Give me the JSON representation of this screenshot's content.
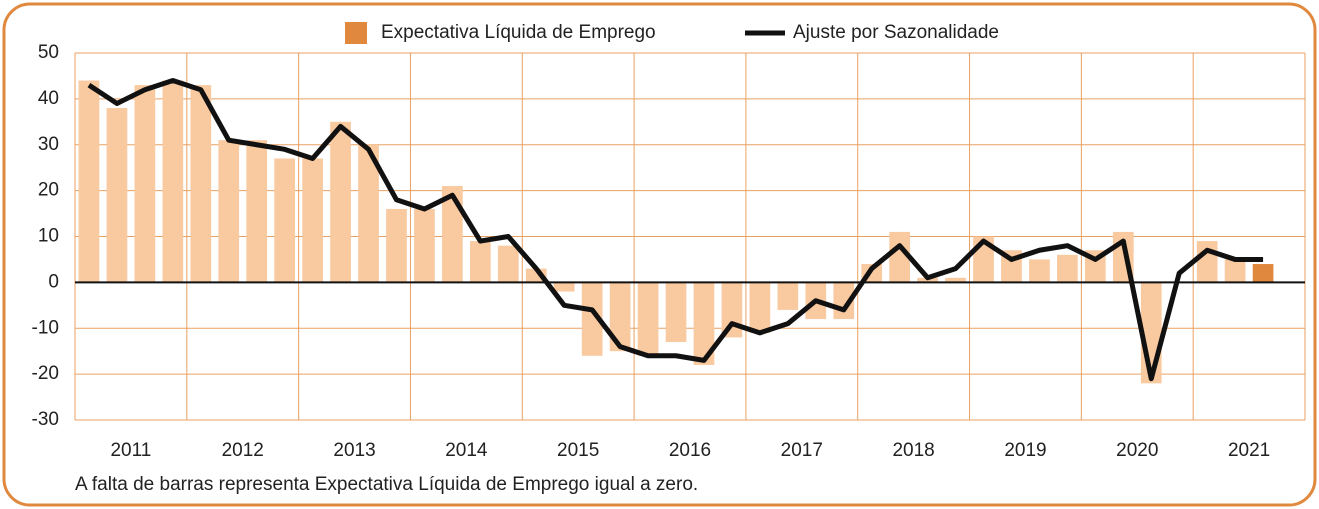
{
  "chart_data": {
    "type": "bar+line",
    "footnote": "A falta de barras representa Expectativa Líquida de Emprego igual a zero.",
    "year_labels": [
      "2011",
      "2012",
      "2013",
      "2014",
      "2015",
      "2016",
      "2017",
      "2018",
      "2019",
      "2020",
      "2021"
    ],
    "categories": [
      null,
      null,
      null,
      null,
      null,
      null,
      null,
      null,
      null,
      null,
      null,
      null,
      null,
      null,
      null,
      null,
      null,
      null,
      null,
      null,
      null,
      null,
      null,
      null,
      null,
      null,
      null,
      null,
      null,
      null,
      null,
      null,
      null,
      null,
      null,
      null,
      null,
      null,
      null,
      null,
      null,
      null,
      null,
      null
    ],
    "series": [
      {
        "name": "Expectativa Líquida de Emprego",
        "type": "bar",
        "color": "#e0893e",
        "colors": [
          "#f9c9a0",
          "#f9c9a0",
          "#f9c9a0",
          "#f9c9a0",
          "#f9c9a0",
          "#f9c9a0",
          "#f9c9a0",
          "#f9c9a0",
          "#f9c9a0",
          "#f9c9a0",
          "#f9c9a0",
          "#f9c9a0",
          "#f9c9a0",
          "#f9c9a0",
          "#f9c9a0",
          "#f9c9a0",
          "#f9c9a0",
          "#f9c9a0",
          "#f9c9a0",
          "#f9c9a0",
          "#f9c9a0",
          "#f9c9a0",
          "#f9c9a0",
          "#f9c9a0",
          "#f9c9a0",
          "#f9c9a0",
          "#f9c9a0",
          "#f9c9a0",
          "#f9c9a0",
          "#f9c9a0",
          "#f9c9a0",
          "#f9c9a0",
          "#f9c9a0",
          "#f9c9a0",
          "#f9c9a0",
          "#f9c9a0",
          "#f9c9a0",
          "#f9c9a0",
          "#f9c9a0",
          "#f9c9a0",
          "#f9c9a0",
          "#f9c9a0",
          "#e0893e",
          null
        ],
        "values": [
          44,
          38,
          43,
          44,
          43,
          31,
          31,
          27,
          27,
          35,
          30,
          16,
          16,
          21,
          9,
          8,
          3,
          -2,
          -16,
          -15,
          -16,
          -13,
          -18,
          -12,
          -11,
          -6,
          -8,
          -8,
          4,
          11,
          1,
          1,
          10,
          7,
          5,
          6,
          7,
          11,
          -22,
          0,
          9,
          5,
          4,
          null
        ]
      },
      {
        "name": "Ajuste por Sazonalidade",
        "type": "line",
        "color": "#111111",
        "values": [
          43,
          39,
          42,
          44,
          42,
          31,
          30,
          29,
          27,
          34,
          29,
          18,
          16,
          19,
          9,
          10,
          3,
          -5,
          -6,
          -14,
          -16,
          -16,
          -17,
          -9,
          -11,
          -9,
          -4,
          -6,
          3,
          8,
          1,
          3,
          9,
          5,
          7,
          8,
          5,
          9,
          -21,
          2,
          7,
          5,
          5,
          null
        ]
      }
    ],
    "ylim": [
      -30,
      50
    ],
    "yticks": [
      -30,
      -20,
      -10,
      0,
      10,
      20,
      30,
      40,
      50
    ],
    "grid": true,
    "grid_color": "#e8a060"
  }
}
